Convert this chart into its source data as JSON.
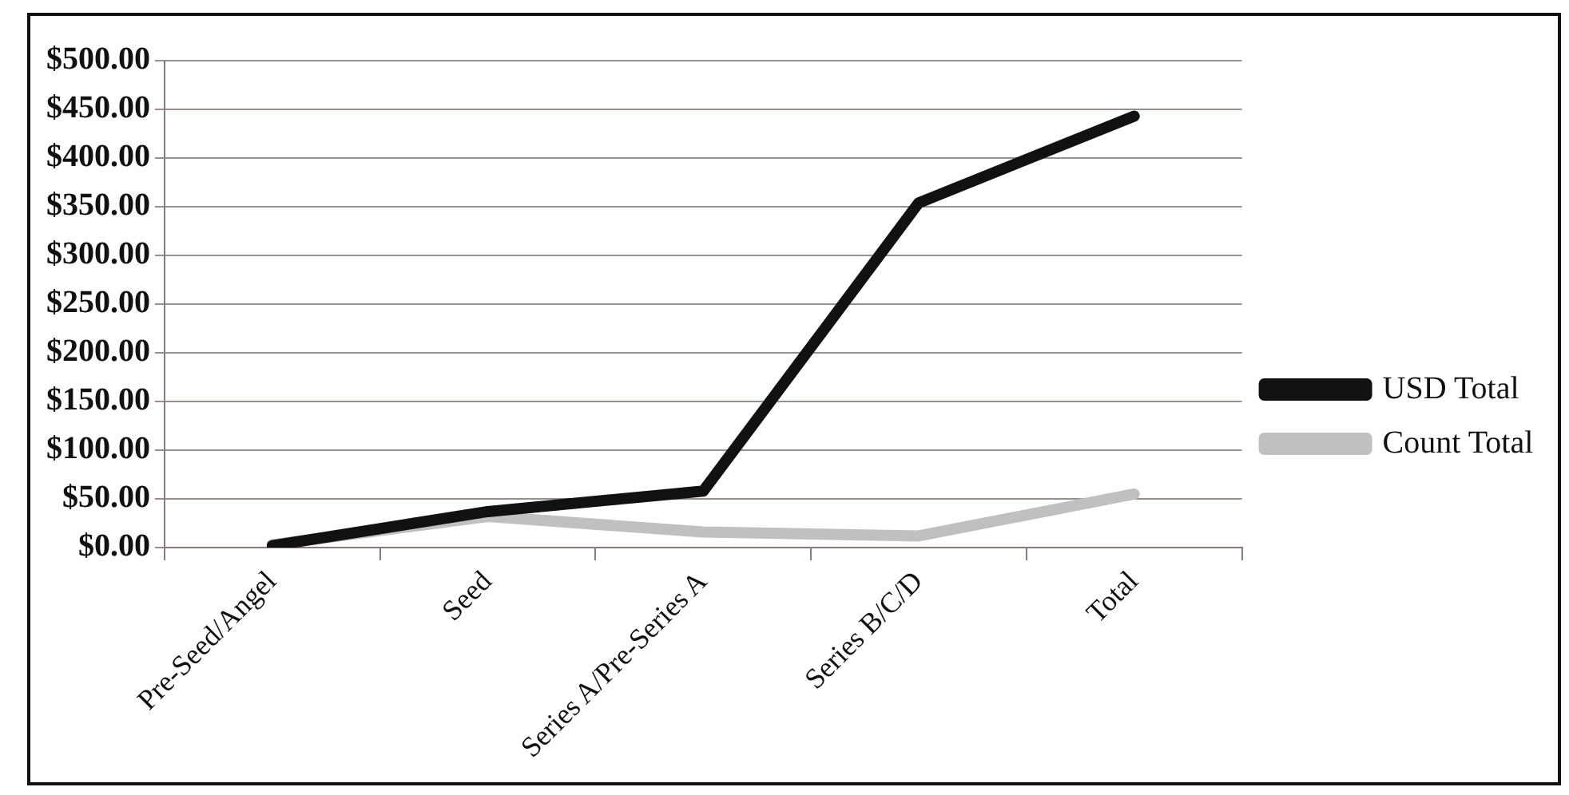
{
  "chart_data": {
    "type": "line",
    "categories": [
      "Pre-Seed/Angel",
      "Seed",
      "Series A/Pre-Series A",
      "Series B/C/D",
      "Total"
    ],
    "series": [
      {
        "name": "USD Total",
        "color": "#111111",
        "values": [
          2,
          37,
          58,
          354,
          443
        ]
      },
      {
        "name": "Count Total",
        "color": "#c0c0c0",
        "values": [
          3,
          32,
          16,
          12,
          55
        ]
      }
    ],
    "ylim": [
      0,
      500
    ],
    "yticks": [
      {
        "value": 0,
        "label": "$0.00"
      },
      {
        "value": 50,
        "label": "$50.00"
      },
      {
        "value": 100,
        "label": "$100.00"
      },
      {
        "value": 150,
        "label": "$150.00"
      },
      {
        "value": 200,
        "label": "$200.00"
      },
      {
        "value": 250,
        "label": "$250.00"
      },
      {
        "value": 300,
        "label": "$300.00"
      },
      {
        "value": 350,
        "label": "$350.00"
      },
      {
        "value": 400,
        "label": "$400.00"
      },
      {
        "value": 450,
        "label": "$450.00"
      },
      {
        "value": 500,
        "label": "$500.00"
      }
    ],
    "grid": "y",
    "legend": "right",
    "marker": "none",
    "line_style": "solid"
  }
}
